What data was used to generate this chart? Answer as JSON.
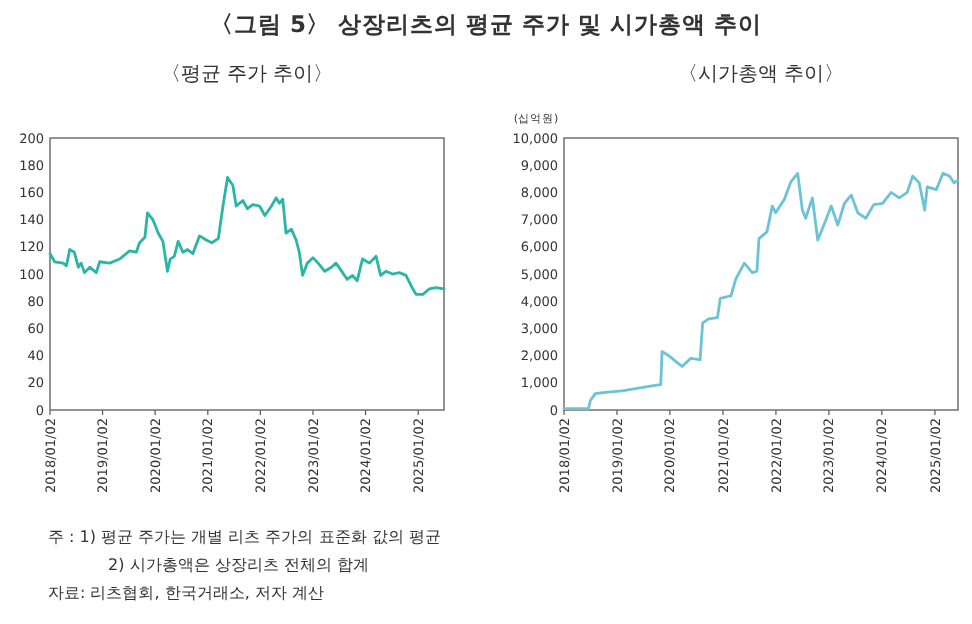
{
  "chart_data": [
    {
      "type": "line",
      "title": "〈그림 5〉 상장리츠의 평균 주가 및 시가총액 추이",
      "subtitle": "〈평균 주가 추이〉",
      "x": [
        "2018-01-02",
        "2018-02-03",
        "2018-04-03",
        "2018-04-26",
        "2018-05-19",
        "2018-06-20",
        "2018-07-18",
        "2018-08-06",
        "2018-08-29",
        "2018-10-05",
        "2018-11-20",
        "2018-12-13",
        "2019-02-21",
        "2019-05-01",
        "2019-07-09",
        "2019-08-24",
        "2019-09-16",
        "2019-10-23",
        "2019-11-10",
        "2019-12-17",
        "2020-01-24",
        "2020-02-25",
        "2020-03-28",
        "2020-04-16",
        "2020-05-14",
        "2020-06-10",
        "2020-07-13",
        "2020-08-14",
        "2020-09-20",
        "2020-11-05",
        "2020-12-22",
        "2021-01-29",
        "2021-03-16",
        "2021-04-17",
        "2021-05-19",
        "2021-06-25",
        "2021-07-18",
        "2021-09-02",
        "2021-10-04",
        "2021-11-10",
        "2021-12-27",
        "2022-02-02",
        "2022-03-20",
        "2022-04-21",
        "2022-05-14",
        "2022-06-06",
        "2022-06-29",
        "2022-08-05",
        "2022-09-07",
        "2022-09-29",
        "2022-10-22",
        "2022-11-24",
        "2023-01-02",
        "2023-02-07",
        "2023-03-25",
        "2023-05-10",
        "2023-06-11",
        "2023-07-27",
        "2023-08-28",
        "2023-10-04",
        "2023-11-05",
        "2023-12-12",
        "2024-01-29",
        "2024-03-15",
        "2024-04-16",
        "2024-05-23",
        "2024-07-08",
        "2024-08-24",
        "2024-10-09",
        "2024-11-15",
        "2024-12-18",
        "2025-02-03",
        "2025-03-19",
        "2025-05-05",
        "2025-06-30"
      ],
      "series": [
        {
          "color": "#2ab5a5",
          "values": [
            115,
            109,
            108,
            106,
            118,
            116,
            105,
            108,
            101,
            105,
            101,
            109,
            108,
            111,
            117,
            116,
            123,
            127,
            145,
            140,
            130,
            124,
            102,
            111,
            113,
            124,
            116,
            118,
            115,
            128,
            125,
            123,
            126,
            150,
            171,
            165,
            150,
            154,
            148,
            151,
            150,
            143,
            150,
            156,
            152,
            155,
            130,
            133,
            125,
            116,
            99,
            108,
            112,
            108,
            102,
            105,
            108,
            101,
            96,
            99,
            95,
            111,
            108,
            113,
            99,
            102,
            100,
            101,
            99,
            91,
            85,
            85,
            89,
            90,
            89
          ]
        }
      ],
      "xlim": [
        "2018-01-02",
        "2025-06-30"
      ],
      "xticks": [
        {
          "value": "2018-01-02",
          "label": "2018/01/02"
        },
        {
          "value": "2019-01-02",
          "label": "2019/01/02"
        },
        {
          "value": "2020-01-02",
          "label": "2020/01/02"
        },
        {
          "value": "2021-01-02",
          "label": "2021/01/02"
        },
        {
          "value": "2022-01-02",
          "label": "2022/01/02"
        },
        {
          "value": "2023-01-02",
          "label": "2023/01/02"
        },
        {
          "value": "2024-01-02",
          "label": "2024/01/02"
        },
        {
          "value": "2025-01-02",
          "label": "2025/01/02"
        }
      ],
      "ylim": [
        0,
        200
      ],
      "yticks": [
        0,
        20,
        40,
        60,
        80,
        100,
        120,
        140,
        160,
        180,
        200
      ],
      "annotations": [
        "주  : 1) 평균 주가는 개별 리츠 주가의 표준화 값의 평균",
        "2) 시가총액은 상장리츠 전체의 합계",
        "자료: 리츠협회, 한국거래소, 저자 계산"
      ]
    },
    {
      "type": "line",
      "subtitle": "〈시가총액 추이〉",
      "ylabel": "(십억원)",
      "x": [
        "2018-01-02",
        "2018-06-20",
        "2018-07-03",
        "2018-08-05",
        "2018-10-13",
        "2019-02-06",
        "2019-06-01",
        "2019-09-10",
        "2019-10-31",
        "2019-11-09",
        "2019-12-25",
        "2020-02-09",
        "2020-03-26",
        "2020-05-25",
        "2020-07-28",
        "2020-08-15",
        "2020-09-26",
        "2020-11-25",
        "2020-12-14",
        "2021-02-26",
        "2021-03-30",
        "2021-05-29",
        "2021-07-23",
        "2021-08-24",
        "2021-09-07",
        "2021-11-01",
        "2021-12-08",
        "2021-12-31",
        "2022-03-01",
        "2022-04-16",
        "2022-06-01",
        "2022-07-03",
        "2022-07-26",
        "2022-09-10",
        "2022-10-17",
        "2022-12-02",
        "2023-01-18",
        "2023-03-04",
        "2023-04-19",
        "2023-06-05",
        "2023-07-20",
        "2023-09-13",
        "2023-11-07",
        "2024-01-07",
        "2024-03-06",
        "2024-05-01",
        "2024-06-25",
        "2024-08-01",
        "2024-09-16",
        "2024-10-23",
        "2024-11-10",
        "2025-01-11",
        "2025-02-26",
        "2025-04-12",
        "2025-05-14",
        "2025-06-10"
      ],
      "series": [
        {
          "color": "#6cc3d5",
          "values": [
            50,
            50,
            350,
            600,
            650,
            700,
            800,
            900,
            930,
            2150,
            2000,
            1800,
            1600,
            1900,
            1850,
            3200,
            3350,
            3400,
            4100,
            4200,
            4800,
            5400,
            5050,
            5100,
            6300,
            6550,
            7500,
            7250,
            7750,
            8400,
            8700,
            7350,
            7050,
            7800,
            6250,
            6850,
            7500,
            6800,
            7600,
            7900,
            7250,
            7050,
            7550,
            7600,
            8000,
            7800,
            8000,
            8600,
            8350,
            7350,
            8200,
            8100,
            8700,
            8600,
            8350,
            8450
          ]
        }
      ],
      "xlim": [
        "2018-01-02",
        "2025-06-10"
      ],
      "xticks": [
        {
          "value": "2018-01-02",
          "label": "2018/01/02"
        },
        {
          "value": "2019-01-02",
          "label": "2019/01/02"
        },
        {
          "value": "2020-01-02",
          "label": "2020/01/02"
        },
        {
          "value": "2021-01-02",
          "label": "2021/01/02"
        },
        {
          "value": "2022-01-02",
          "label": "2022/01/02"
        },
        {
          "value": "2023-01-02",
          "label": "2023/01/02"
        },
        {
          "value": "2024-01-02",
          "label": "2024/01/02"
        },
        {
          "value": "2025-01-02",
          "label": "2025/01/02"
        }
      ],
      "ylim": [
        0,
        10000
      ],
      "yticks": [
        {
          "value": 0,
          "label": "0"
        },
        {
          "value": 1000,
          "label": "1,000"
        },
        {
          "value": 2000,
          "label": "2,000"
        },
        {
          "value": 3000,
          "label": "3,000"
        },
        {
          "value": 4000,
          "label": "4,000"
        },
        {
          "value": 5000,
          "label": "5,000"
        },
        {
          "value": 6000,
          "label": "6,000"
        },
        {
          "value": 7000,
          "label": "7,000"
        },
        {
          "value": 8000,
          "label": "8,000"
        },
        {
          "value": 9000,
          "label": "9,000"
        },
        {
          "value": 10000,
          "label": "10,000"
        }
      ]
    }
  ]
}
